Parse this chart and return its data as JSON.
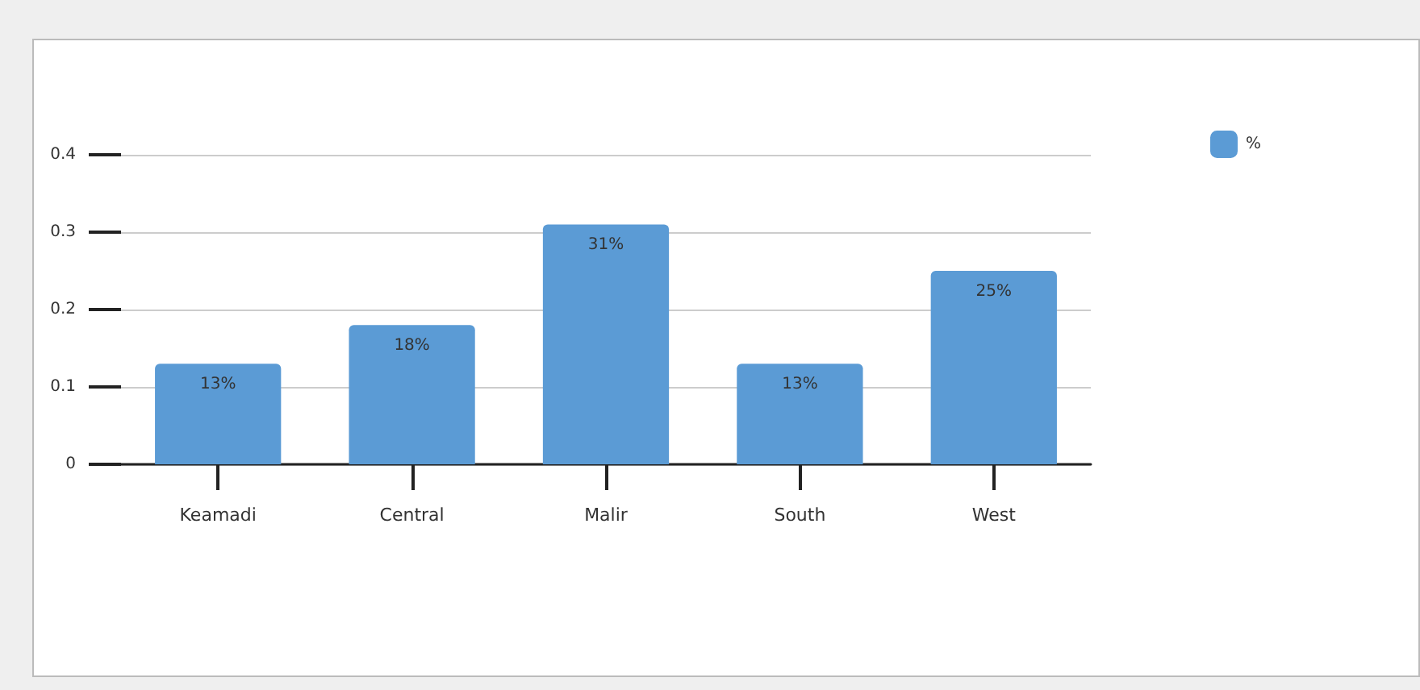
{
  "chart_data": {
    "type": "bar",
    "categories": [
      "Keamadi",
      "Central",
      "Malir",
      "South",
      "West"
    ],
    "series": [
      {
        "name": "%",
        "color": "#5b9bd5",
        "values": [
          0.13,
          0.18,
          0.31,
          0.13,
          0.25
        ],
        "value_labels": [
          "13%",
          "18%",
          "31%",
          "13%",
          "25%"
        ]
      }
    ],
    "ylim": [
      0,
      0.4
    ],
    "yticks": [
      0,
      0.1,
      0.2,
      0.3,
      0.4
    ],
    "grid": "y",
    "legend": "top right"
  }
}
